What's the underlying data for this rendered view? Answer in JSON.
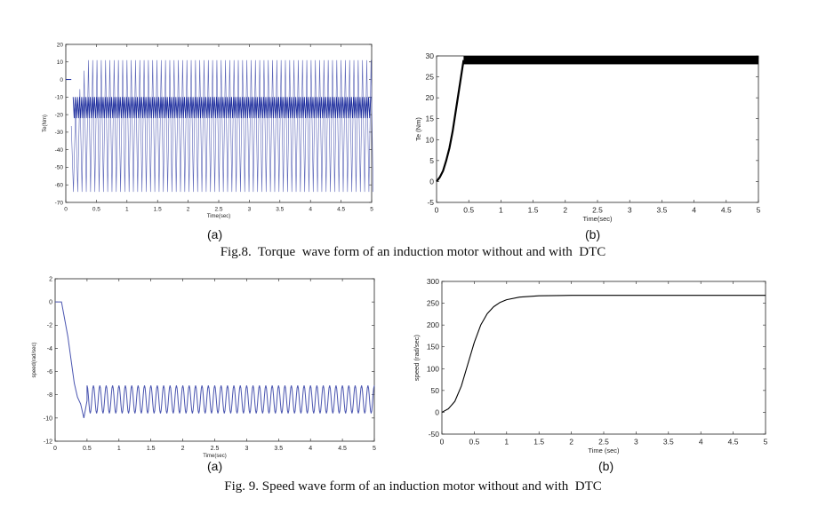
{
  "panel_labels": {
    "p8a": "(a)",
    "p8b": "(b)",
    "p9a": "(a)",
    "p9b": "(b)"
  },
  "captions": {
    "fig8": "Fig.8.  Torque  wave form of an induction motor without and with  DTC",
    "fig9": "Fig. 9. Speed wave form of an induction motor without and with  DTC"
  },
  "colors": {
    "axis": "#222222",
    "blue_trace": "#1f2f9e",
    "black_trace": "#000000"
  },
  "chart_data": [
    {
      "id": "fig8a",
      "type": "line",
      "title": "",
      "xlabel": "Time(sec)",
      "ylabel": "Te(Nm)",
      "xlim": [
        0,
        5
      ],
      "ylim": [
        -70,
        20
      ],
      "xticks": [
        0,
        0.5,
        1,
        1.5,
        2,
        2.5,
        3,
        3.5,
        4,
        4.5,
        5
      ],
      "xticklabels": [
        "0",
        "0.5",
        "1",
        "1.5",
        "2",
        "2.5",
        "3",
        "3.5",
        "4",
        "4.5",
        "5"
      ],
      "yticks": [
        -70,
        -60,
        -50,
        -40,
        -30,
        -20,
        -10,
        0,
        10,
        20
      ],
      "yticklabels": [
        "-70",
        "-60",
        "-50",
        "-40",
        "-30",
        "-20",
        "-10",
        "0",
        "10",
        "20"
      ],
      "grid": false,
      "color": "blue",
      "series": [
        {
          "envelope": {
            "max": 11,
            "min": -64,
            "dense_band": [
              -22,
              -10
            ]
          },
          "oscillation_period_s": 0.07,
          "startup": {
            "t": [
              0,
              0.09
            ],
            "value": 0
          }
        }
      ]
    },
    {
      "id": "fig8b",
      "type": "line",
      "title": "",
      "xlabel": "Time(sec)",
      "ylabel": "Te (Nm)",
      "xlim": [
        0,
        5
      ],
      "ylim": [
        -5,
        30
      ],
      "xticks": [
        0,
        0.5,
        1,
        1.5,
        2,
        2.5,
        3,
        3.5,
        4,
        4.5,
        5
      ],
      "xticklabels": [
        "0",
        "0.5",
        "1",
        "1.5",
        "2",
        "2.5",
        "3",
        "3.5",
        "4",
        "4.5",
        "5"
      ],
      "yticks": [
        -5,
        0,
        5,
        10,
        15,
        20,
        25,
        30
      ],
      "yticklabels": [
        "-5",
        "0",
        "5",
        "10",
        "15",
        "20",
        "25",
        "30"
      ],
      "grid": false,
      "color": "black",
      "series": [
        {
          "x": [
            0,
            0.05,
            0.1,
            0.15,
            0.2,
            0.25,
            0.3,
            0.35,
            0.4,
            0.42,
            5
          ],
          "y": [
            0,
            1,
            2.5,
            5,
            8,
            12,
            17,
            22,
            27,
            29,
            29
          ],
          "band": [
            28,
            30
          ]
        }
      ]
    },
    {
      "id": "fig9a",
      "type": "line",
      "title": "",
      "xlabel": "Time(sec)",
      "ylabel": "speed(rad/sec)",
      "xlim": [
        0,
        5
      ],
      "ylim": [
        -12,
        2
      ],
      "xticks": [
        0,
        0.5,
        1,
        1.5,
        2,
        2.5,
        3,
        3.5,
        4,
        4.5,
        5
      ],
      "xticklabels": [
        "0",
        "0.5",
        "1",
        "1.5",
        "2",
        "2.5",
        "3",
        "3.5",
        "4",
        "4.5",
        "5"
      ],
      "yticks": [
        -12,
        -10,
        -8,
        -6,
        -4,
        -2,
        0,
        2
      ],
      "yticklabels": [
        "-12",
        "-10",
        "-8",
        "-6",
        "-4",
        "-2",
        "0",
        "2"
      ],
      "grid": false,
      "color": "blue",
      "series": [
        {
          "x": [
            0,
            0.1,
            0.2,
            0.3,
            0.35,
            0.4,
            0.45,
            0.5
          ],
          "y": [
            0,
            0,
            -3,
            -7,
            -8.2,
            -8.8,
            -10,
            -8.5
          ],
          "steady_oscillation": {
            "max": -7.2,
            "min": -9.6,
            "period_s": 0.1
          }
        }
      ]
    },
    {
      "id": "fig9b",
      "type": "line",
      "title": "",
      "xlabel": "Time (sec)",
      "ylabel": "speed (rad/sec)",
      "xlim": [
        0,
        5
      ],
      "ylim": [
        -50,
        300
      ],
      "xticks": [
        0,
        0.5,
        1,
        1.5,
        2,
        2.5,
        3,
        3.5,
        4,
        4.5,
        5
      ],
      "xticklabels": [
        "0",
        "0.5",
        "1",
        "1.5",
        "2",
        "2.5",
        "3",
        "3.5",
        "4",
        "4.5",
        "5"
      ],
      "yticks": [
        -50,
        0,
        50,
        100,
        150,
        200,
        250,
        300
      ],
      "yticklabels": [
        "-50",
        "0",
        "50",
        "100",
        "150",
        "200",
        "250",
        "300"
      ],
      "grid": false,
      "color": "black",
      "series": [
        {
          "x": [
            0,
            0.1,
            0.2,
            0.3,
            0.4,
            0.5,
            0.6,
            0.7,
            0.8,
            0.9,
            1.0,
            1.2,
            1.5,
            2.0,
            2.5,
            5
          ],
          "y": [
            0,
            8,
            25,
            60,
            110,
            160,
            200,
            226,
            242,
            252,
            258,
            264,
            267,
            268,
            268,
            268
          ]
        }
      ]
    }
  ]
}
